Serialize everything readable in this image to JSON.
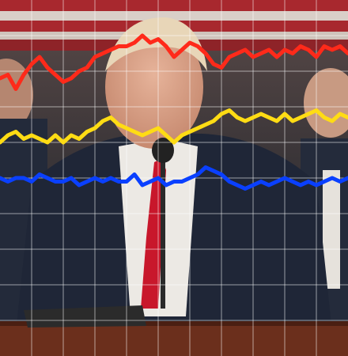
{
  "chart_data": {
    "type": "line",
    "title": "",
    "xlabel": "",
    "ylabel": "",
    "grid": true,
    "x": [
      0,
      1,
      2,
      3,
      4,
      5,
      6,
      7,
      8,
      9,
      10,
      11,
      12,
      13,
      14,
      15,
      16,
      17,
      18,
      19,
      20,
      21,
      22,
      23,
      24,
      25,
      26,
      27,
      28,
      29,
      30,
      31,
      32,
      33,
      34,
      35,
      36,
      37,
      38,
      39,
      40,
      41,
      42,
      43,
      44
    ],
    "ylim": [
      0,
      100
    ],
    "series": [
      {
        "color": "#ff2a1a",
        "values": [
          78,
          79,
          75,
          79,
          82,
          84,
          81,
          79,
          77,
          78,
          80,
          81,
          84,
          85,
          86,
          87,
          87,
          88,
          90,
          88,
          89,
          87,
          84,
          86,
          88,
          87,
          85,
          82,
          81,
          84,
          85,
          86,
          84,
          85,
          86,
          84,
          86,
          85,
          87,
          86,
          84,
          87,
          86,
          87,
          85
        ]
      },
      {
        "color": "#ffdc14",
        "values": [
          60,
          62,
          63,
          61,
          62,
          61,
          60,
          62,
          60,
          62,
          61,
          63,
          64,
          66,
          67,
          65,
          64,
          63,
          62,
          63,
          64,
          62,
          60,
          62,
          63,
          64,
          65,
          66,
          68,
          69,
          67,
          66,
          67,
          68,
          67,
          66,
          68,
          66,
          67,
          68,
          69,
          67,
          66,
          68,
          67
        ]
      },
      {
        "color": "#0a40ff",
        "values": [
          50,
          49,
          50,
          50,
          49,
          51,
          50,
          49,
          49,
          50,
          48,
          49,
          50,
          49,
          50,
          49,
          49,
          51,
          48,
          49,
          50,
          48,
          49,
          49,
          50,
          51,
          53,
          52,
          51,
          49,
          48,
          47,
          48,
          49,
          48,
          49,
          50,
          49,
          48,
          49,
          48,
          49,
          50,
          49,
          50
        ]
      }
    ]
  },
  "background": {
    "suit_color": "#1f2637",
    "tie_color": "#c8172b",
    "flag_red": "#a8282e",
    "podium_color": "#6b2f1c"
  }
}
